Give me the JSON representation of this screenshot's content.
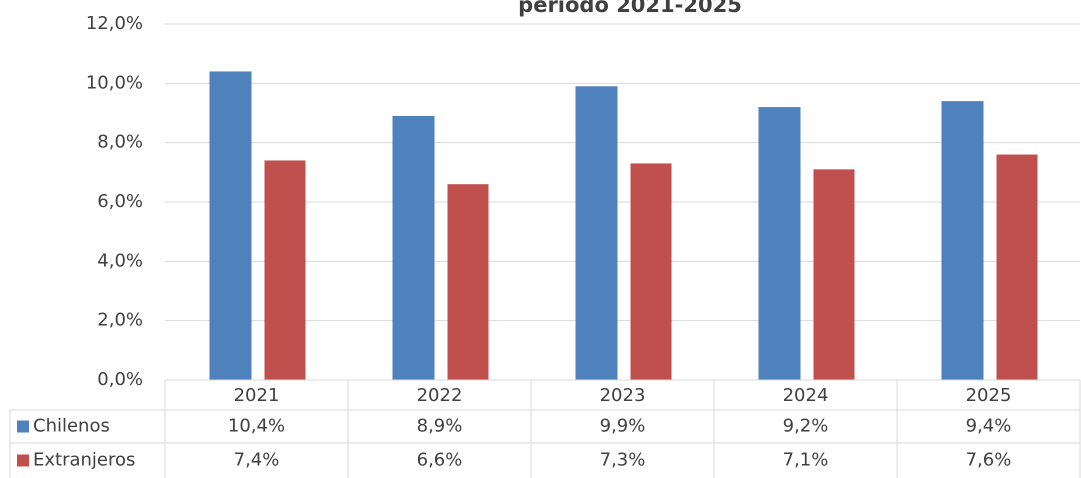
{
  "chart_data": {
    "type": "bar",
    "title": "período 2021-2025",
    "categories": [
      "2021",
      "2022",
      "2023",
      "2024",
      "2025"
    ],
    "series": [
      {
        "name": "Chilenos",
        "color": "#4f81bd",
        "values": [
          10.4,
          8.9,
          9.9,
          9.2,
          9.4
        ],
        "value_labels": [
          "10,4%",
          "8,9%",
          "9,9%",
          "9,2%",
          "9,4%"
        ]
      },
      {
        "name": "Extranjeros",
        "color": "#c0504d",
        "values": [
          7.4,
          6.6,
          7.3,
          7.1,
          7.6
        ],
        "value_labels": [
          "7,4%",
          "6,6%",
          "7,3%",
          "7,1%",
          "7,6%"
        ]
      }
    ],
    "ylim": [
      0,
      12
    ],
    "yticks": [
      {
        "value": 0,
        "label": "0,0%"
      },
      {
        "value": 2,
        "label": "2,0%"
      },
      {
        "value": 4,
        "label": "4,0%"
      },
      {
        "value": 6,
        "label": "6,0%"
      },
      {
        "value": 8,
        "label": "8,0%"
      },
      {
        "value": 10,
        "label": "10,0%"
      },
      {
        "value": 12,
        "label": "12,0%"
      }
    ],
    "grid": true,
    "data_table": true
  }
}
